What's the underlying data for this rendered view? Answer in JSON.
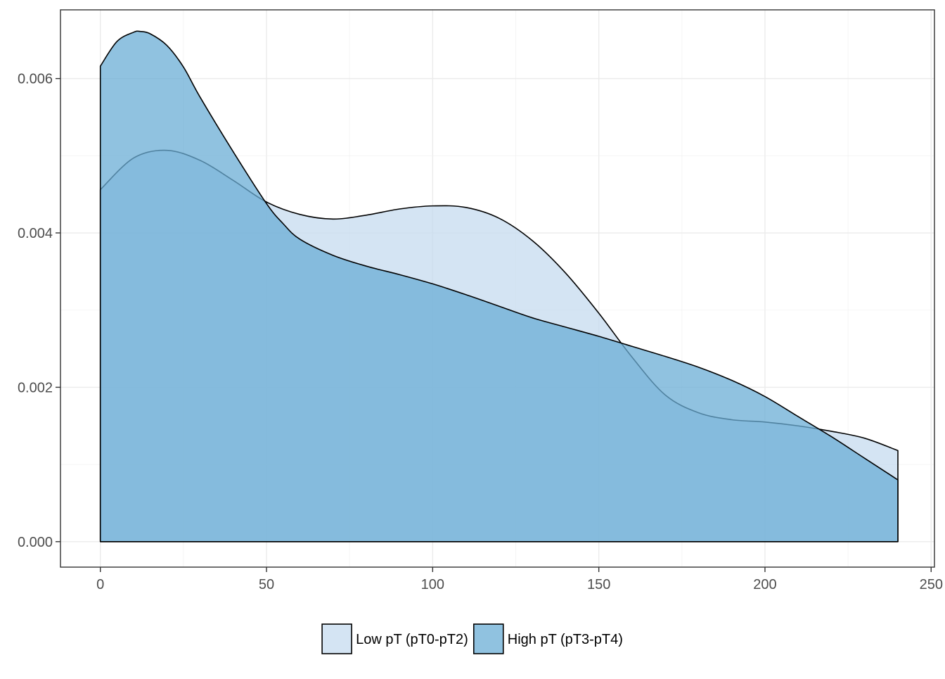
{
  "chart_data": {
    "type": "area",
    "subtype": "density",
    "title": "",
    "xlabel": "",
    "ylabel": "",
    "xlim": [
      -12,
      251
    ],
    "ylim": [
      -0.00033,
      0.00689
    ],
    "x_ticks": [
      0,
      50,
      100,
      150,
      200,
      250
    ],
    "x_tick_labels": [
      "0",
      "50",
      "100",
      "150",
      "200",
      "250"
    ],
    "y_ticks": [
      0,
      0.002,
      0.004,
      0.006
    ],
    "y_tick_labels": [
      "0.000",
      "0.002",
      "0.004",
      "0.006"
    ],
    "grid": true,
    "legend_position": "bottom",
    "series": [
      {
        "name": "Low pT (pT0-pT2)",
        "color": "#c6dbef",
        "x": [
          0,
          10,
          20,
          30,
          40,
          50,
          60,
          70,
          80,
          90,
          100,
          110,
          120,
          130,
          140,
          150,
          160,
          170,
          180,
          190,
          200,
          210,
          220,
          230,
          240
        ],
        "values": [
          0.00456,
          0.00497,
          0.00507,
          0.00494,
          0.00468,
          0.0044,
          0.00424,
          0.00418,
          0.00423,
          0.00431,
          0.00435,
          0.00433,
          0.00419,
          0.0039,
          0.00348,
          0.00296,
          0.00239,
          0.0019,
          0.00167,
          0.00158,
          0.00155,
          0.0015,
          0.00143,
          0.00134,
          0.00118
        ]
      },
      {
        "name": "High pT (pT3-pT4)",
        "color": "#6baed6",
        "x": [
          0,
          5,
          10,
          12,
          15,
          20,
          25,
          30,
          40,
          50,
          55,
          60,
          70,
          80,
          90,
          100,
          110,
          120,
          130,
          140,
          150,
          160,
          170,
          180,
          190,
          200,
          210,
          220,
          230,
          240
        ],
        "values": [
          0.00616,
          0.00648,
          0.0066,
          0.00661,
          0.00658,
          0.00643,
          0.00615,
          0.00576,
          0.00505,
          0.00438,
          0.00412,
          0.00392,
          0.00371,
          0.00357,
          0.00346,
          0.00334,
          0.0032,
          0.00305,
          0.0029,
          0.00278,
          0.00266,
          0.00253,
          0.0024,
          0.00226,
          0.00209,
          0.00188,
          0.00162,
          0.00136,
          0.00108,
          0.0008
        ]
      }
    ]
  }
}
